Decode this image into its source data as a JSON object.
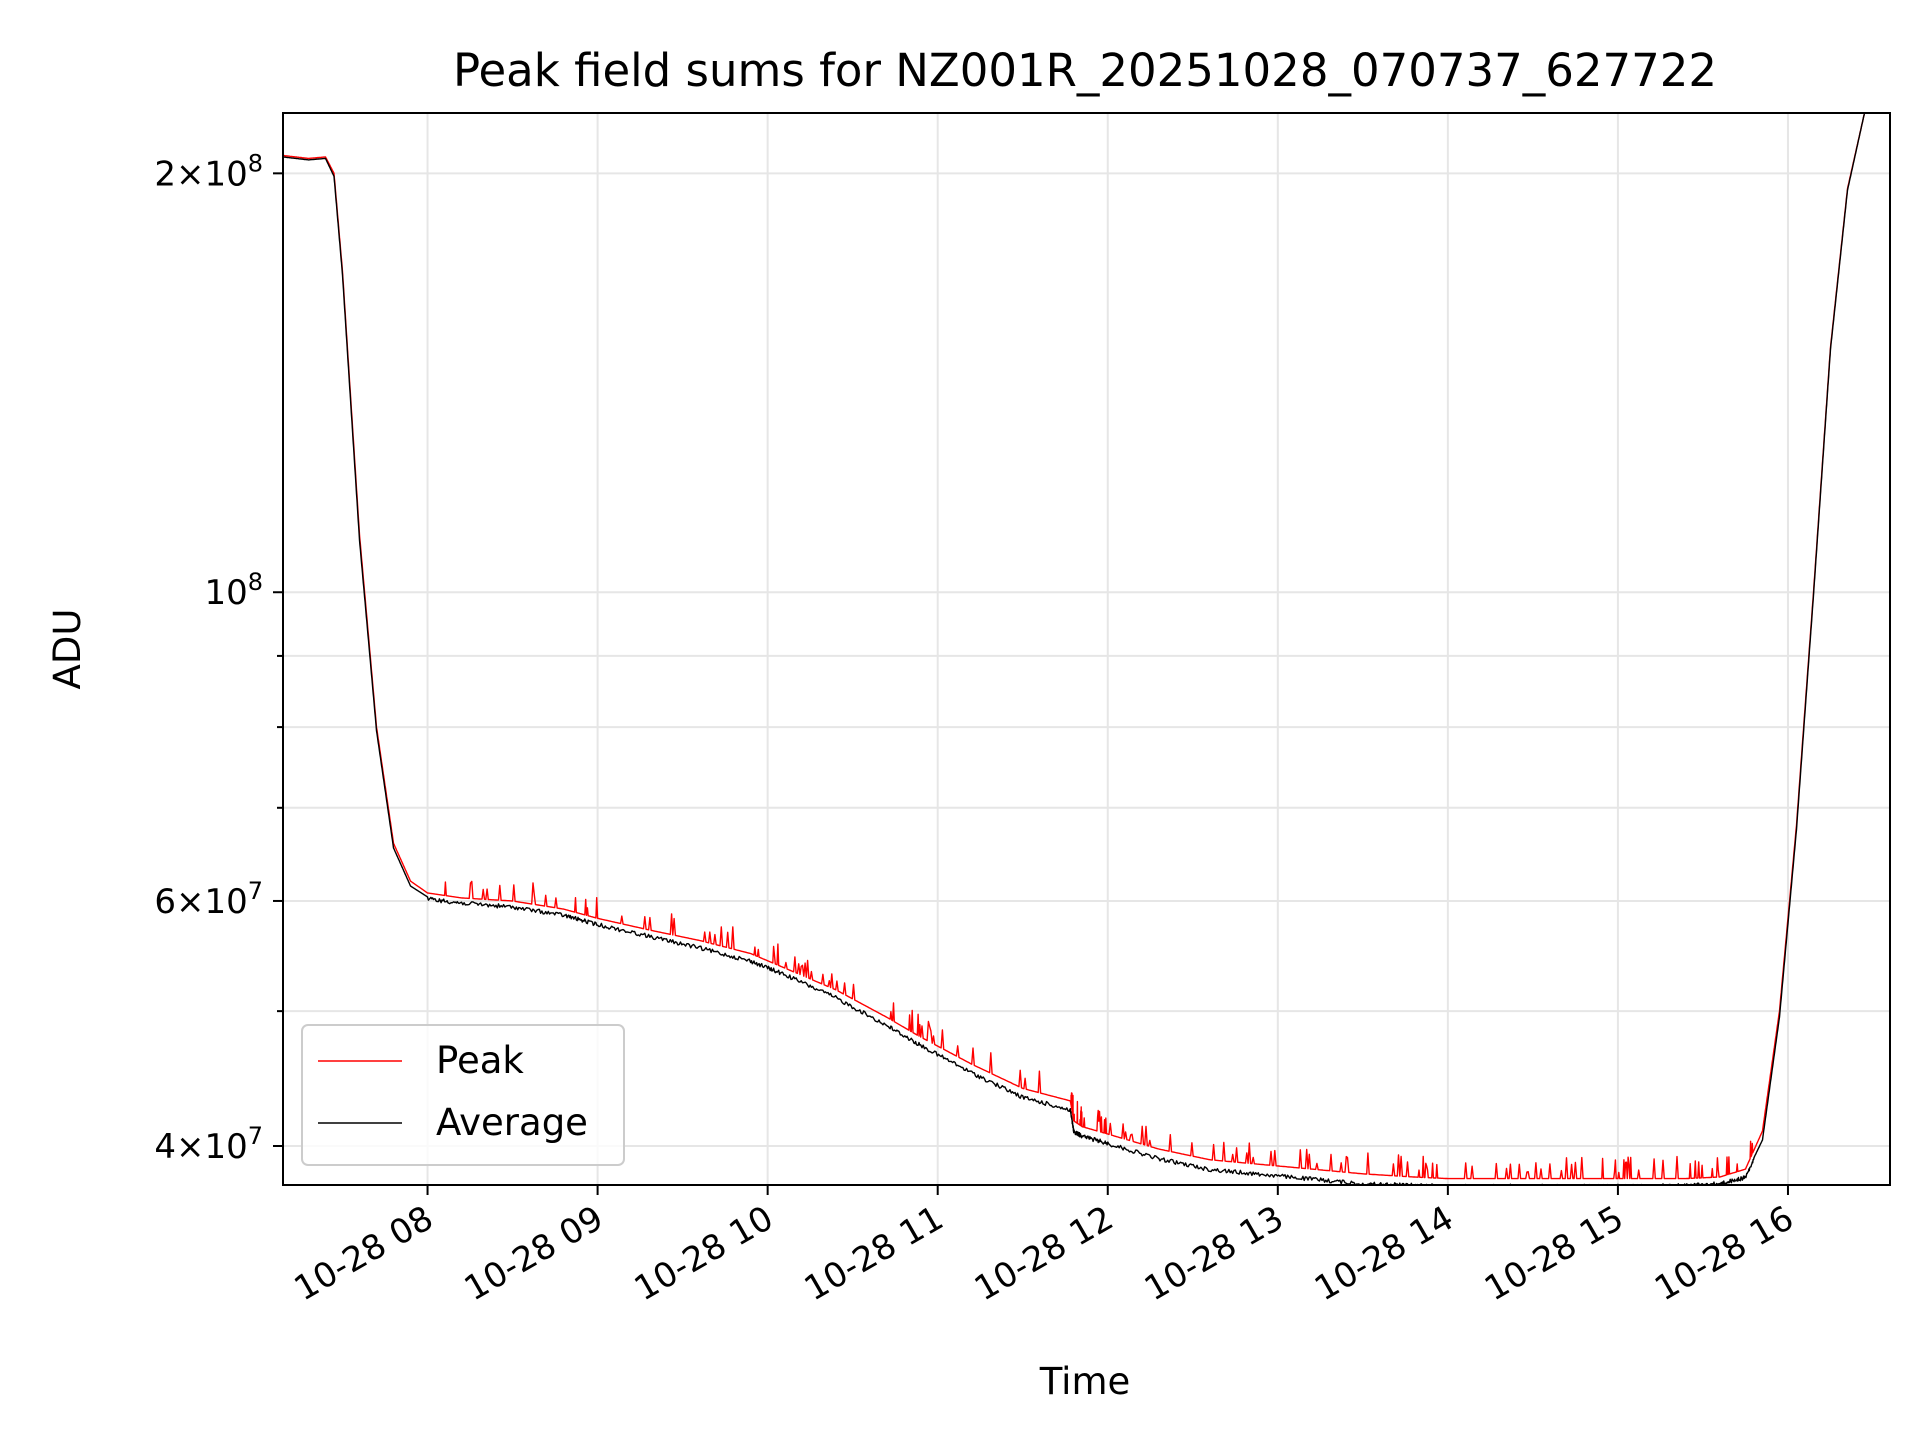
{
  "chart_data": {
    "type": "line",
    "title": "Peak field sums for NZ001R_20251028_070737_627722",
    "xlabel": "Time",
    "ylabel": "ADU",
    "yscale": "log",
    "xlim": [
      7.15,
      16.6
    ],
    "ylim": [
      37500000,
      221000000
    ],
    "grid": true,
    "legend_position": "lower-left",
    "x_ticks": [
      {
        "value": 8,
        "label": "10-28 08"
      },
      {
        "value": 9,
        "label": "10-28 09"
      },
      {
        "value": 10,
        "label": "10-28 10"
      },
      {
        "value": 11,
        "label": "10-28 11"
      },
      {
        "value": 12,
        "label": "10-28 12"
      },
      {
        "value": 13,
        "label": "10-28 13"
      },
      {
        "value": 14,
        "label": "10-28 14"
      },
      {
        "value": 15,
        "label": "10-28 15"
      },
      {
        "value": 16,
        "label": "10-28 16"
      }
    ],
    "y_ticks": [
      {
        "value": 40000000,
        "mantissa": "4",
        "exp": "7",
        "major": true
      },
      {
        "value": 50000000,
        "major": false
      },
      {
        "value": 60000000,
        "mantissa": "6",
        "exp": "7",
        "major": true
      },
      {
        "value": 70000000,
        "major": false
      },
      {
        "value": 80000000,
        "major": false
      },
      {
        "value": 90000000,
        "major": false
      },
      {
        "value": 100000000,
        "mantissa": "",
        "exp": "8",
        "major": true
      },
      {
        "value": 200000000,
        "mantissa": "2",
        "exp": "8",
        "major": true
      }
    ],
    "series": [
      {
        "name": "Peak",
        "color": "#ff0000",
        "x": [
          7.15,
          7.3,
          7.4,
          7.45,
          7.5,
          7.6,
          7.7,
          7.8,
          7.9,
          8.0,
          8.2,
          8.5,
          8.8,
          9.0,
          9.3,
          9.6,
          9.9,
          10.1,
          10.4,
          10.7,
          10.9,
          11.2,
          11.5,
          11.78,
          11.8,
          11.85,
          12.0,
          12.3,
          12.6,
          12.9,
          13.2,
          13.5,
          13.8,
          14.0,
          14.3,
          14.6,
          14.9,
          15.1,
          15.4,
          15.6,
          15.75,
          15.85,
          15.95,
          16.05,
          16.15,
          16.25,
          16.35,
          16.45,
          16.6
        ],
        "values": [
          206000000,
          205000000,
          205500000,
          200000000,
          170000000,
          110000000,
          80000000,
          66000000,
          62000000,
          60800000,
          60300000,
          60000000,
          59200000,
          58300000,
          57200000,
          56200000,
          55000000,
          53700000,
          51800000,
          49500000,
          47900000,
          45800000,
          44000000,
          43100000,
          41700000,
          41300000,
          40800000,
          39800000,
          39100000,
          38800000,
          38500000,
          38200000,
          38000000,
          37900000,
          37900000,
          37900000,
          37900000,
          37900000,
          37900000,
          38000000,
          38500000,
          41000000,
          50000000,
          68000000,
          100000000,
          150000000,
          195000000,
          221000000,
          221000000
        ]
      },
      {
        "name": "Average",
        "color": "#000000",
        "x": [
          7.15,
          7.3,
          7.4,
          7.45,
          7.5,
          7.6,
          7.7,
          7.8,
          7.9,
          8.0,
          8.2,
          8.5,
          8.8,
          9.0,
          9.3,
          9.6,
          9.9,
          10.1,
          10.4,
          10.7,
          10.9,
          11.2,
          11.5,
          11.78,
          11.8,
          11.85,
          12.0,
          12.3,
          12.6,
          12.9,
          13.2,
          13.5,
          13.8,
          14.0,
          14.3,
          14.6,
          14.9,
          15.1,
          15.4,
          15.6,
          15.75,
          15.85,
          15.95,
          16.05,
          16.15,
          16.25,
          16.35,
          16.45,
          16.6
        ],
        "values": [
          205500000,
          204500000,
          205000000,
          199000000,
          169000000,
          109000000,
          79500000,
          65500000,
          61500000,
          60400000,
          60000000,
          59600000,
          58800000,
          57900000,
          56800000,
          55700000,
          54500000,
          53300000,
          51300000,
          49000000,
          47400000,
          45300000,
          43500000,
          42600000,
          41100000,
          40800000,
          40300000,
          39300000,
          38600000,
          38300000,
          38000000,
          37700000,
          37600000,
          37550000,
          37550000,
          37550000,
          37550000,
          37550000,
          37600000,
          37700000,
          38100000,
          40400000,
          49500000,
          67500000,
          99500000,
          149500000,
          194500000,
          221000000,
          221000000
        ]
      }
    ]
  }
}
